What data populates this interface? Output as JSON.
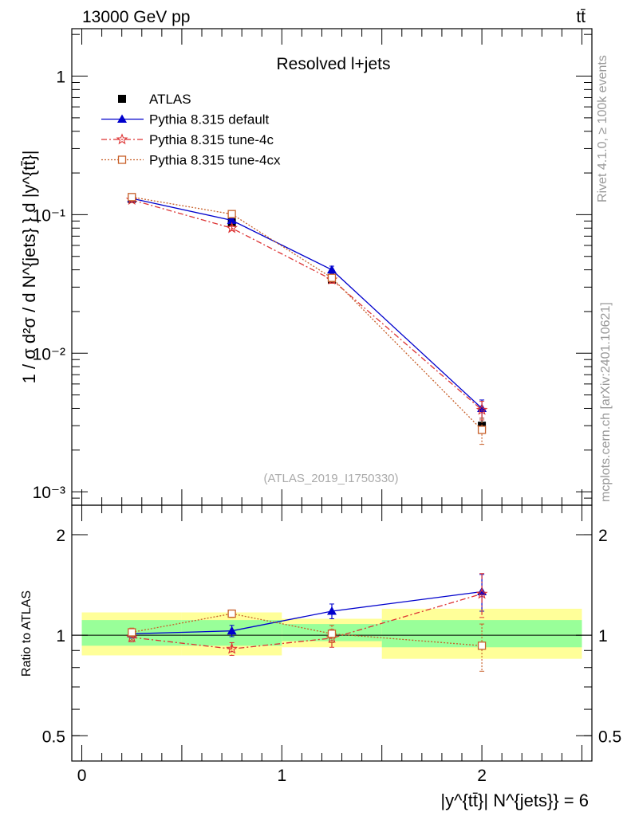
{
  "header": {
    "left": "13000 GeV pp",
    "right": "tt̄"
  },
  "side": {
    "rivet": "Rivet 4.1.0, ≥ 100k events",
    "mcplots": "mcplots.cern.ch [arXiv:2401.10621]"
  },
  "chart_data": [
    {
      "type": "line",
      "panel": "main",
      "title": "Resolved l+jets",
      "watermark": "(ATLAS_2019_I1750330)",
      "ylabel": "1 / σ d²σ / d N^{jets} } d |y^{tt̄}|",
      "yscale": "log",
      "ylim": [
        0.0008,
        2.2
      ],
      "xlim": [
        -0.05,
        2.55
      ],
      "ytick_labels": [
        "10⁻³",
        "10⁻²",
        "10⁻¹",
        "1"
      ],
      "ytick_values": [
        0.001,
        0.01,
        0.1,
        1
      ],
      "legend_position": "top-left",
      "series": [
        {
          "name": "ATLAS",
          "color": "#000000",
          "marker": "filled-square",
          "x": [
            0.25,
            0.75,
            1.25,
            2.0
          ],
          "y": [
            0.13,
            0.088,
            0.034,
            0.003
          ],
          "yerr": [
            0.004,
            0.004,
            0.0015,
            0.0003
          ]
        },
        {
          "name": "Pythia 8.315 default",
          "color": "#0000cc",
          "marker": "filled-triangle",
          "line": "solid",
          "x": [
            0.25,
            0.75,
            1.25,
            2.0
          ],
          "y": [
            0.131,
            0.091,
            0.04,
            0.004
          ],
          "yerr": [
            0.003,
            0.003,
            0.0025,
            0.0006
          ]
        },
        {
          "name": "Pythia 8.315 tune-4c",
          "color": "#dd3333",
          "marker": "open-star",
          "line": "dashdot",
          "x": [
            0.25,
            0.75,
            1.25,
            2.0
          ],
          "y": [
            0.128,
            0.08,
            0.034,
            0.0039
          ],
          "yerr": [
            0.003,
            0.003,
            0.002,
            0.0006
          ]
        },
        {
          "name": "Pythia 8.315 tune-4cx",
          "color": "#c8602a",
          "marker": "open-square",
          "line": "dotted",
          "x": [
            0.25,
            0.75,
            1.25,
            2.0
          ],
          "y": [
            0.134,
            0.101,
            0.035,
            0.0028
          ],
          "yerr": [
            0.003,
            0.003,
            0.002,
            0.0006
          ]
        }
      ]
    },
    {
      "type": "line",
      "panel": "ratio",
      "ylabel": "Ratio to ATLAS",
      "xlabel": "|y^{tt̄}| N^{jets}} = 6",
      "yscale": "log",
      "ylim": [
        0.42,
        2.45
      ],
      "xlim": [
        -0.05,
        2.55
      ],
      "ytick_labels": [
        "0.5",
        "1",
        "2"
      ],
      "ytick_values": [
        0.5,
        1,
        2
      ],
      "xtick_labels": [
        "0",
        "1",
        "2"
      ],
      "xtick_values": [
        0,
        1,
        2
      ],
      "bins": [
        [
          0,
          0.5
        ],
        [
          0.5,
          1.0
        ],
        [
          1.0,
          1.5
        ],
        [
          1.5,
          2.5
        ]
      ],
      "band_inner": [
        [
          0.93,
          1.11
        ],
        [
          0.93,
          1.11
        ],
        [
          0.96,
          1.08
        ],
        [
          0.92,
          1.11
        ]
      ],
      "band_outer": [
        [
          0.87,
          1.17
        ],
        [
          0.87,
          1.17
        ],
        [
          0.92,
          1.12
        ],
        [
          0.85,
          1.2
        ]
      ],
      "series": [
        {
          "name": "Pythia 8.315 default",
          "color": "#0000cc",
          "marker": "filled-triangle",
          "line": "solid",
          "x": [
            0.25,
            0.75,
            1.25,
            2.0
          ],
          "y": [
            1.01,
            1.03,
            1.18,
            1.35
          ],
          "yerr": [
            0.03,
            0.04,
            0.06,
            0.17
          ]
        },
        {
          "name": "Pythia 8.315 tune-4c",
          "color": "#dd3333",
          "marker": "open-star",
          "line": "dashdot",
          "x": [
            0.25,
            0.75,
            1.25,
            2.0
          ],
          "y": [
            0.985,
            0.91,
            0.98,
            1.33
          ],
          "yerr": [
            0.03,
            0.04,
            0.06,
            0.2
          ]
        },
        {
          "name": "Pythia 8.315 tune-4cx",
          "color": "#c8602a",
          "marker": "open-square",
          "line": "dotted",
          "x": [
            0.25,
            0.75,
            1.25,
            2.0
          ],
          "y": [
            1.02,
            1.16,
            1.01,
            0.93
          ],
          "yerr": [
            0.03,
            0.03,
            0.06,
            0.15
          ]
        }
      ]
    }
  ]
}
